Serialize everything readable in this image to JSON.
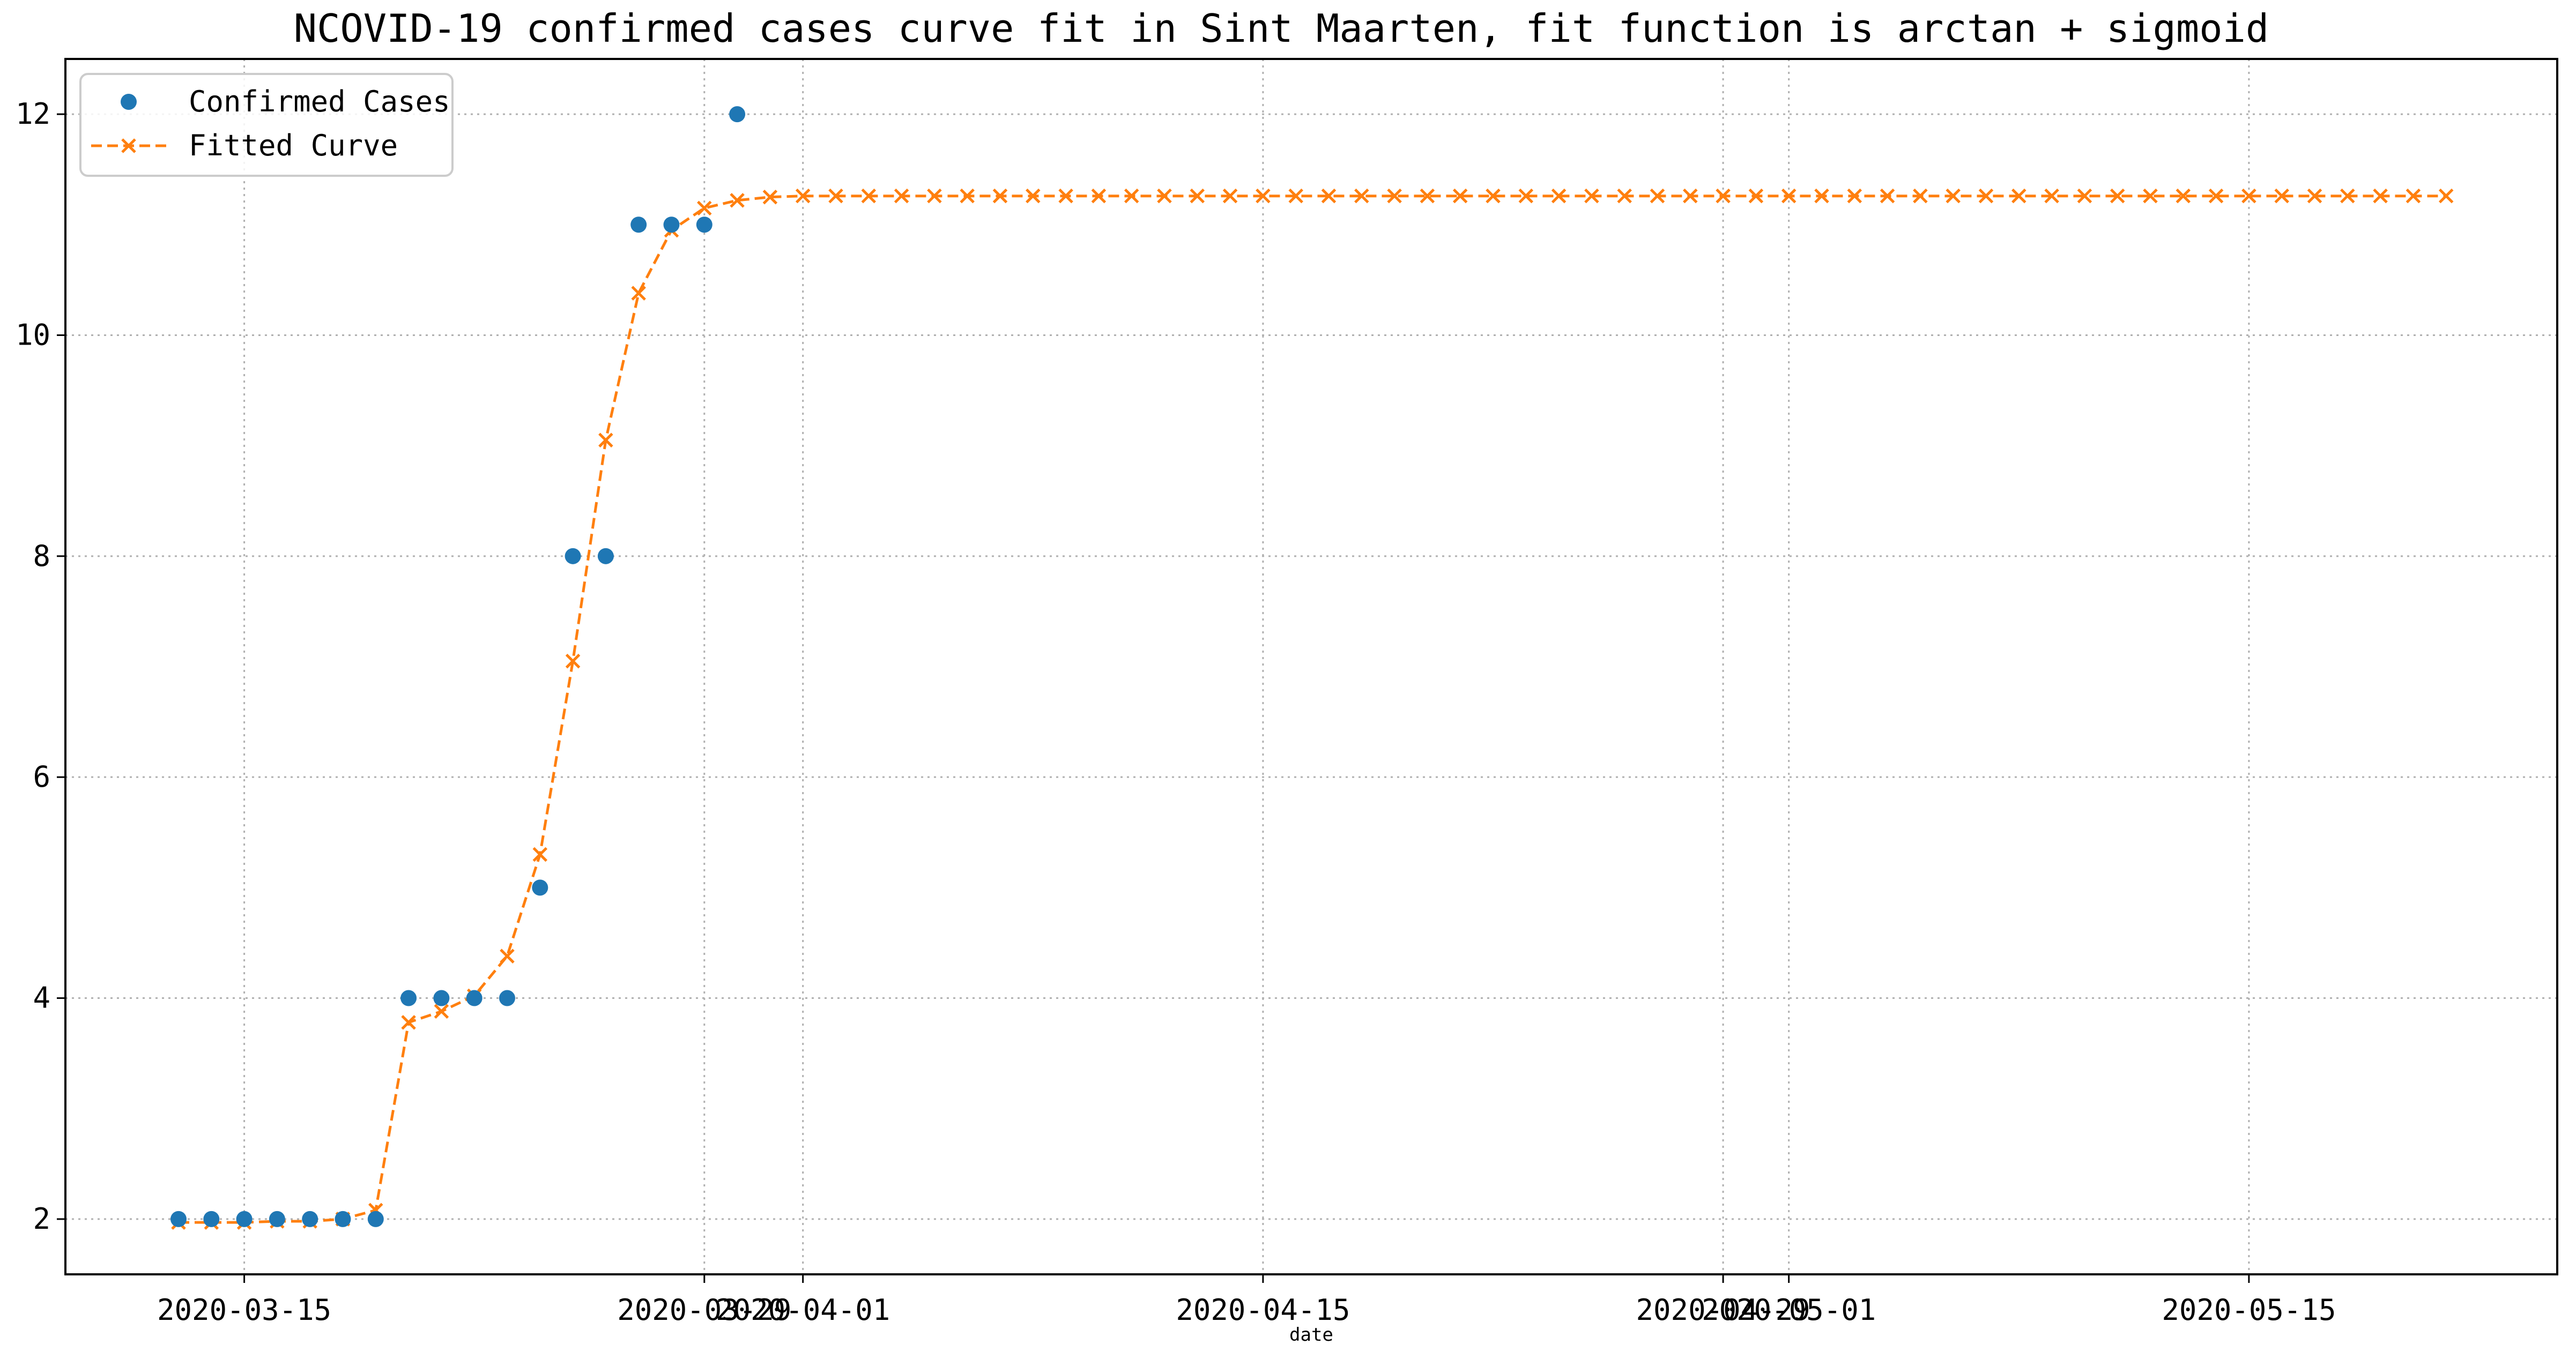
{
  "chart_data": {
    "type": "line",
    "title": "NCOVID-19 confirmed cases curve fit in Sint Maarten, fit function is arctan + sigmoid",
    "xlabel": "date",
    "ylabel": "",
    "x_ticks": [
      "2020-03-15",
      "2020-03-29",
      "2020-04-01",
      "2020-04-15",
      "2020-04-29",
      "2020-05-01",
      "2020-05-15"
    ],
    "y_ticks": [
      "2",
      "4",
      "6",
      "8",
      "10",
      "12"
    ],
    "ylim": [
      1.5,
      12.5
    ],
    "grid": true,
    "legend_position": "top-left",
    "series": [
      {
        "name": "Confirmed Cases",
        "style": "markers-circle",
        "color": "#1f77b4",
        "start_date": "2020-03-13",
        "values": [
          2,
          2,
          2,
          2,
          2,
          2,
          2,
          4,
          4,
          4,
          4,
          5,
          8,
          8,
          11,
          11,
          11,
          12
        ]
      },
      {
        "name": "Fitted Curve",
        "style": "dashed-line-x-markers",
        "color": "#ff7f0e",
        "start_date": "2020-03-13",
        "values": [
          1.97,
          1.97,
          1.97,
          1.98,
          1.98,
          2.0,
          2.08,
          3.78,
          3.88,
          4.02,
          4.38,
          5.3,
          7.05,
          9.05,
          10.38,
          10.95,
          11.15,
          11.22,
          11.25,
          11.26,
          11.26,
          11.26,
          11.26,
          11.26,
          11.26,
          11.26,
          11.26,
          11.26,
          11.26,
          11.26,
          11.26,
          11.26,
          11.26,
          11.26,
          11.26,
          11.26,
          11.26,
          11.26,
          11.26,
          11.26,
          11.26,
          11.26,
          11.26,
          11.26,
          11.26,
          11.26,
          11.26,
          11.26,
          11.26,
          11.26,
          11.26,
          11.26,
          11.26,
          11.26,
          11.26,
          11.26,
          11.26,
          11.26,
          11.26,
          11.26,
          11.26,
          11.26,
          11.26,
          11.26,
          11.26,
          11.26,
          11.26,
          11.26,
          11.26,
          11.26
        ]
      }
    ]
  }
}
